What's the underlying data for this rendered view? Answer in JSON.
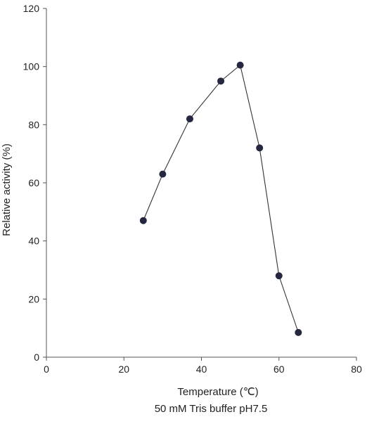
{
  "chart_data": {
    "type": "line",
    "title": "",
    "xlabel": "Temperature (℃)",
    "ylabel": "Relative activity (%)",
    "subtitle": "50 mM Tris buffer pH7.5",
    "xlim": [
      0,
      80
    ],
    "ylim": [
      0,
      120
    ],
    "x_ticks": [
      0,
      20,
      40,
      60,
      80
    ],
    "y_ticks": [
      0,
      20,
      40,
      60,
      80,
      100,
      120
    ],
    "x_tick_labels": [
      "0",
      "20",
      "40",
      "60",
      "80"
    ],
    "y_tick_labels": [
      "0",
      "20",
      "40",
      "60",
      "80",
      "100",
      "120"
    ],
    "grid": false,
    "legend": "none",
    "series": [
      {
        "x": [
          25,
          30,
          37,
          45,
          50,
          55,
          60,
          65
        ],
        "y": [
          47,
          63,
          82,
          95,
          100.5,
          72,
          28,
          8.5
        ],
        "color": "#25263f"
      }
    ]
  }
}
